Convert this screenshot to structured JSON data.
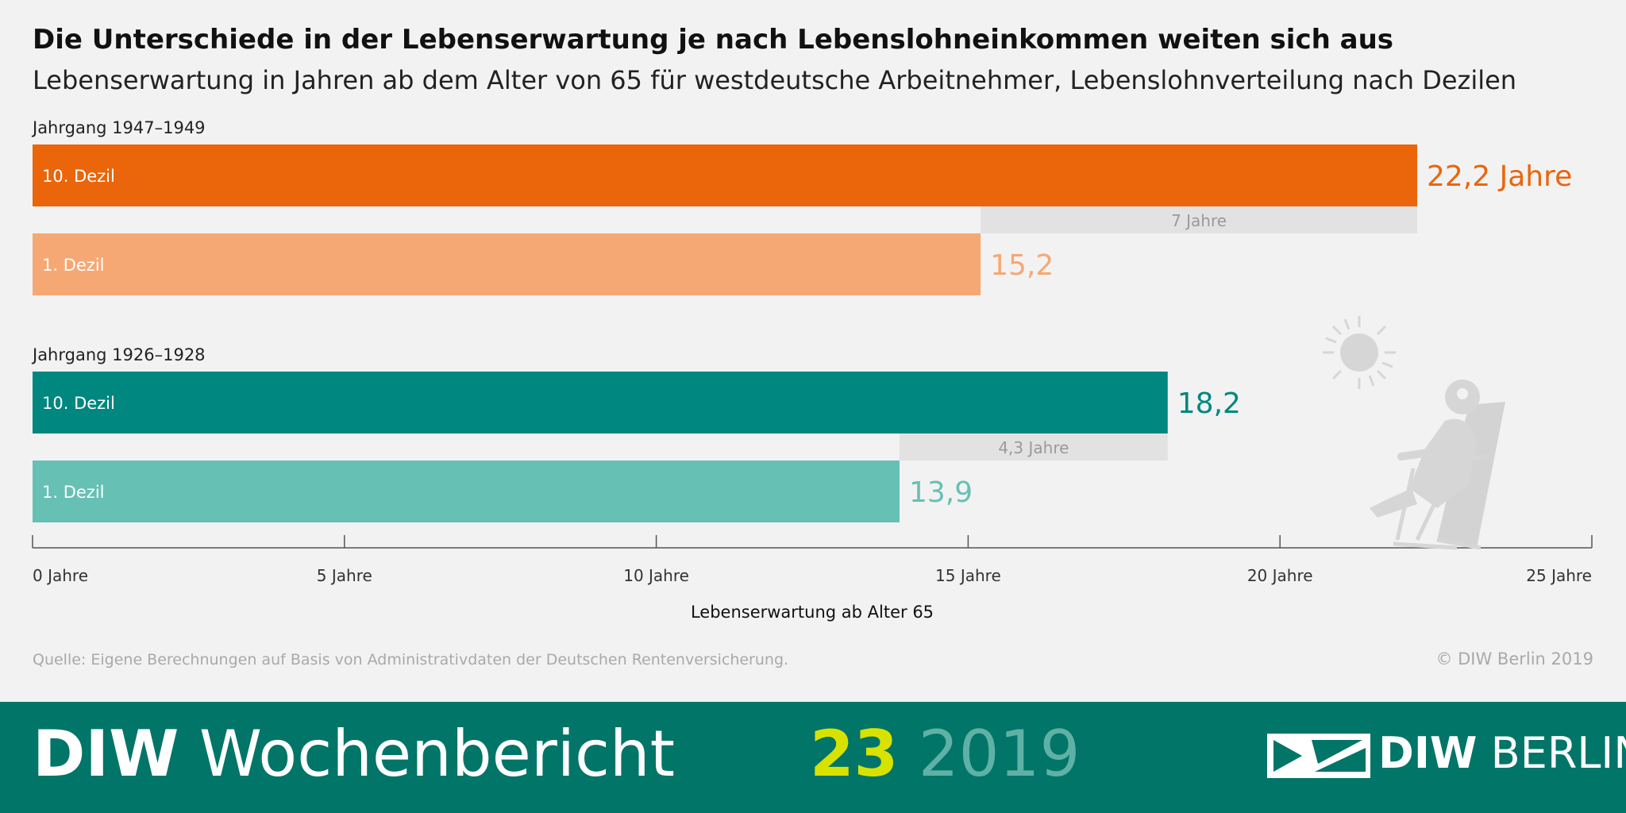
{
  "chart_data": {
    "type": "bar",
    "orientation": "horizontal",
    "title": "Die Unterschiede in der Lebenserwartung je nach Lebenslohneinkommen weiten sich aus",
    "subtitle": "Lebenserwartung in Jahren ab dem Alter von 65 für westdeutsche Arbeitnehmer, Lebenslohnverteilung nach Dezilen",
    "xlabel": "Lebenserwartung ab Alter 65",
    "xlim": [
      0,
      25
    ],
    "ticks": [
      {
        "value": 0,
        "label": "0 Jahre"
      },
      {
        "value": 5,
        "label": "5 Jahre"
      },
      {
        "value": 10,
        "label": "10 Jahre"
      },
      {
        "value": 15,
        "label": "15 Jahre"
      },
      {
        "value": 20,
        "label": "20 Jahre"
      },
      {
        "value": 25,
        "label": "25 Jahre"
      }
    ],
    "groups": [
      {
        "label": "Jahrgang 1947–1949",
        "bars": [
          {
            "label": "10. Dezil",
            "value": 22.2,
            "value_label": "22,2 Jahre",
            "color": "#eb650b"
          },
          {
            "label": "1. Dezil",
            "value": 15.2,
            "value_label": "15,2",
            "color": "#f6a874"
          }
        ],
        "gap_label": "7 Jahre"
      },
      {
        "label": "Jahrgang 1926–1928",
        "bars": [
          {
            "label": "10. Dezil",
            "value": 18.2,
            "value_label": "18,2",
            "color": "#00877f"
          },
          {
            "label": "1. Dezil",
            "value": 13.9,
            "value_label": "13,9",
            "color": "#67c0b4"
          }
        ],
        "gap_label": "4,3 Jahre"
      }
    ],
    "gap_color": "#e2e2e2",
    "grid": false
  },
  "source": "Quelle: Eigene Berechnungen auf Basis von Administrativdaten der Deutschen Rentenversicherung.",
  "copyright": "© DIW Berlin 2019",
  "publication": {
    "brand_bold": "DIW",
    "brand_rest": "Wochenbericht",
    "issue": "23",
    "year": "2019"
  },
  "logo": {
    "bold": "DIW",
    "rest": "BERLIN"
  },
  "colors": {
    "band": "#007568",
    "issue_number": "#d8e200",
    "issue_year": "#5fb1a6"
  }
}
